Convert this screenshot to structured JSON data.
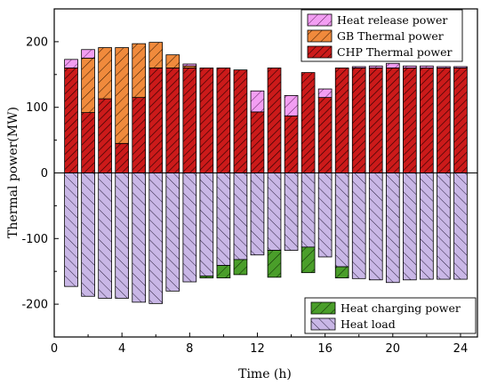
{
  "chart_data": {
    "type": "bar",
    "stacked": true,
    "xlabel": "Time (h)",
    "ylabel": "Thermal power(MW)",
    "xlim": [
      0,
      25
    ],
    "ylim": [
      -250,
      250
    ],
    "xticks": [
      0,
      4,
      8,
      12,
      16,
      20,
      24
    ],
    "yticks": [
      -200,
      -100,
      0,
      100,
      200
    ],
    "x": [
      1,
      2,
      3,
      4,
      5,
      6,
      7,
      8,
      9,
      10,
      11,
      12,
      13,
      14,
      15,
      16,
      17,
      18,
      19,
      20,
      21,
      22,
      23,
      24
    ],
    "series": [
      {
        "name": "CHP Thermal power",
        "color": "#cc1a1a",
        "hatch": "dense-diagonal",
        "values": [
          160,
          92,
          113,
          45,
          115,
          160,
          160,
          160,
          160,
          160,
          157,
          93,
          160,
          87,
          153,
          115,
          160,
          160,
          160,
          160,
          160,
          160,
          160,
          160
        ]
      },
      {
        "name": "GB Thermal power",
        "color": "#f08a3c",
        "hatch": "diagonal",
        "values": [
          0,
          83,
          78,
          146,
          82,
          39,
          20,
          3,
          0,
          0,
          0,
          0,
          0,
          0,
          0,
          0,
          0,
          0,
          0,
          0,
          0,
          0,
          0,
          0
        ]
      },
      {
        "name": "Heat release power",
        "color": "#f29ef2",
        "hatch": "diagonal",
        "values": [
          13,
          13,
          0,
          0,
          0,
          0,
          0,
          3,
          0,
          0,
          0,
          32,
          0,
          31,
          0,
          13,
          0,
          2,
          3,
          7,
          3,
          3,
          2,
          2
        ]
      },
      {
        "name": "Heat load",
        "color": "#c9b7e6",
        "hatch": "back-diagonal",
        "values": [
          -173,
          -188,
          -191,
          -191,
          -197,
          -199,
          -180,
          -166,
          -157,
          -141,
          -132,
          -125,
          -118,
          -118,
          -113,
          -128,
          -143,
          -161,
          -163,
          -167,
          -163,
          -162,
          -162,
          -162
        ]
      },
      {
        "name": "Heat charging power",
        "color": "#4a9e2a",
        "hatch": "diagonal",
        "values": [
          0,
          0,
          0,
          0,
          0,
          0,
          0,
          0,
          -3,
          -19,
          -23,
          0,
          -41,
          0,
          -39,
          0,
          -17,
          0,
          0,
          0,
          0,
          0,
          0,
          0
        ]
      }
    ],
    "legends": [
      {
        "position": "top-right",
        "entries": [
          "Heat release power",
          "GB Thermal power",
          "CHP Thermal power"
        ]
      },
      {
        "position": "bottom-right",
        "entries": [
          "Heat charging power",
          "Heat load"
        ]
      }
    ],
    "grid": false
  }
}
